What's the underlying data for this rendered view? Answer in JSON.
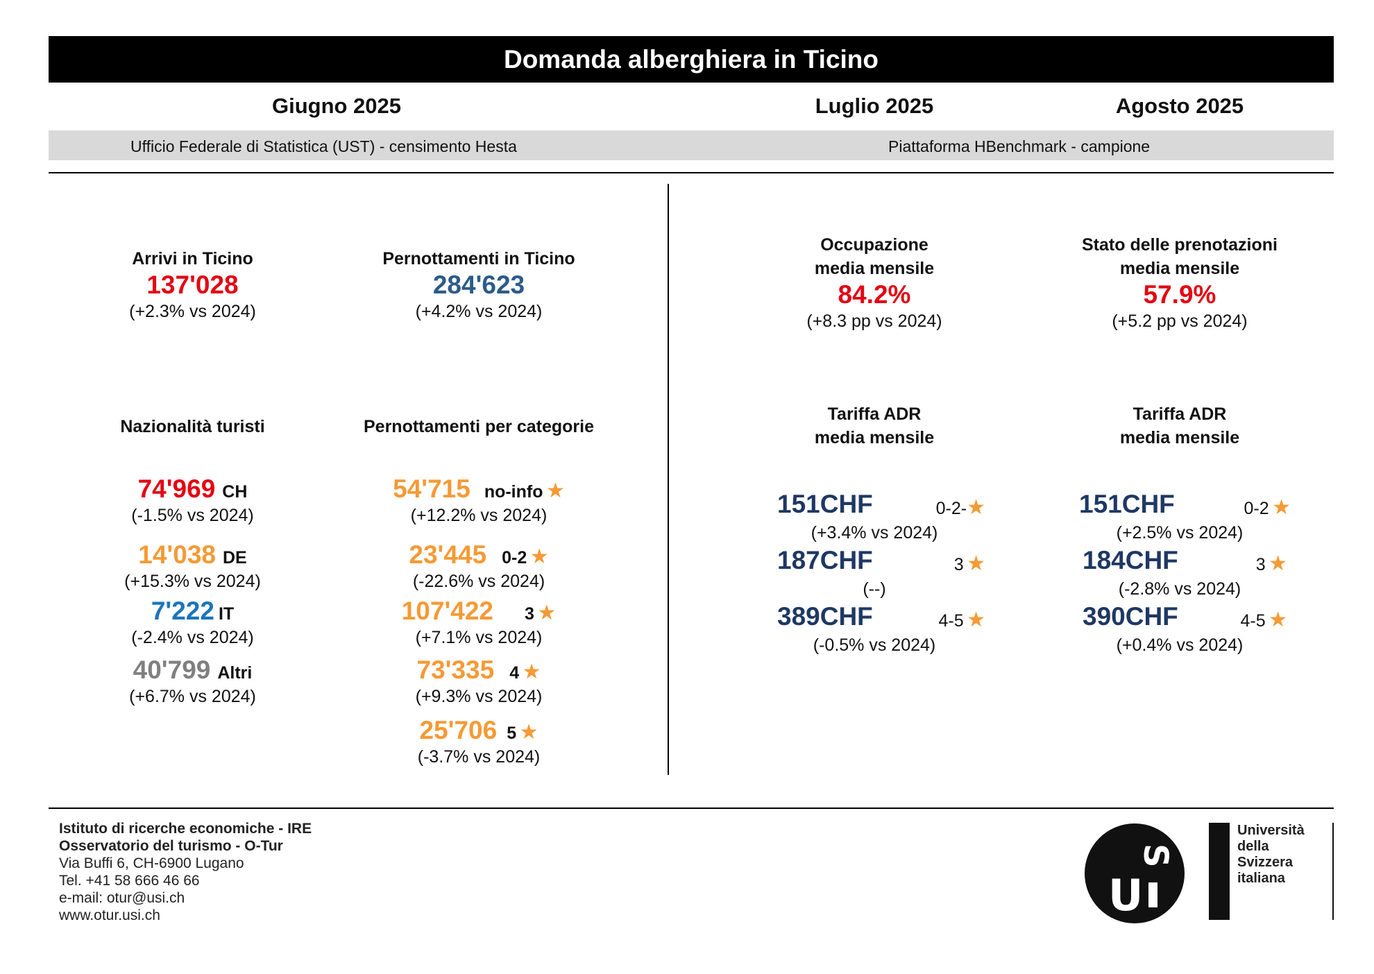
{
  "title": "Domanda alberghiera in Ticino",
  "months": {
    "june": "Giugno 2025",
    "july": "Luglio 2025",
    "august": "Agosto 2025"
  },
  "sources": {
    "left": "Ufficio Federale di Statistica (UST) - censimento Hesta",
    "right": "Piattaforma HBenchmark - campione"
  },
  "arrivals": {
    "label": "Arrivi in Ticino",
    "value": "137'028",
    "change": "(+2.3% vs 2024)"
  },
  "overnights": {
    "label": "Pernottamenti in Ticino",
    "value": "284'623",
    "change": "(+4.2% vs 2024)"
  },
  "nationality": {
    "label": "Nazionalità turisti",
    "items": [
      {
        "value": "74'969",
        "code": "CH",
        "change": "(-1.5% vs 2024)",
        "color": "#e30613"
      },
      {
        "value": "14'038",
        "code": "DE",
        "change": "(+15.3% vs 2024)",
        "color": "#f59a35"
      },
      {
        "value": "7'222",
        "code": "IT",
        "change": "(-2.4% vs 2024)",
        "color": "#1b75bb"
      },
      {
        "value": "40'799",
        "code": "Altri",
        "change": "(+6.7% vs 2024)",
        "color": "#808080"
      }
    ]
  },
  "categories": {
    "label": "Pernottamenti per categorie",
    "items": [
      {
        "value": "54'715",
        "cat": "no-info",
        "change": "(+12.2% vs 2024)"
      },
      {
        "value": "23'445",
        "cat": "0-2",
        "change": "(-22.6% vs 2024)"
      },
      {
        "value": "107'422",
        "cat": "3",
        "change": "(+7.1% vs 2024)"
      },
      {
        "value": "73'335",
        "cat": "4",
        "change": "(+9.3% vs 2024)"
      },
      {
        "value": "25'706",
        "cat": "5",
        "change": "(-3.7% vs 2024)"
      }
    ]
  },
  "occupancy": {
    "label_line1": "Occupazione",
    "label_line2": "media mensile",
    "value": "84.2%",
    "change": "(+8.3 pp vs 2024)"
  },
  "bookings": {
    "label_line1": "Stato delle prenotazioni",
    "label_line2": "media mensile",
    "value": "57.9%",
    "change": "(+5.2 pp vs 2024)"
  },
  "adr_july": {
    "label_line1": "Tariffa ADR",
    "label_line2": "media mensile",
    "items": [
      {
        "value": "151CHF",
        "cat": "0-2-",
        "change": "(+3.4% vs 2024)"
      },
      {
        "value": "187CHF",
        "cat": "3",
        "change": "(--)"
      },
      {
        "value": "389CHF",
        "cat": "4-5",
        "change": "(-0.5% vs 2024)"
      }
    ]
  },
  "adr_august": {
    "label_line1": "Tariffa ADR",
    "label_line2": "media mensile",
    "items": [
      {
        "value": "151CHF",
        "cat": "0-2",
        "change": "(+2.5% vs 2024)"
      },
      {
        "value": "184CHF",
        "cat": "3",
        "change": "(-2.8% vs 2024)"
      },
      {
        "value": "390CHF",
        "cat": "4-5",
        "change": "(+0.4% vs 2024)"
      }
    ]
  },
  "star_glyph": "★",
  "footer": {
    "line1": "Istituto di ricerche economiche - IRE",
    "line2": "Osservatorio del turismo - O-Tur",
    "line3": "Via Buffi 6, CH-6900 Lugano",
    "line4": "Tel. +41 58 666 46 66",
    "line5": "e-mail: otur@usi.ch",
    "line6": "www.otur.usi.ch"
  },
  "usi": {
    "line1": "Università",
    "line2": "della",
    "line3": "Svizzera",
    "line4": "italiana"
  }
}
